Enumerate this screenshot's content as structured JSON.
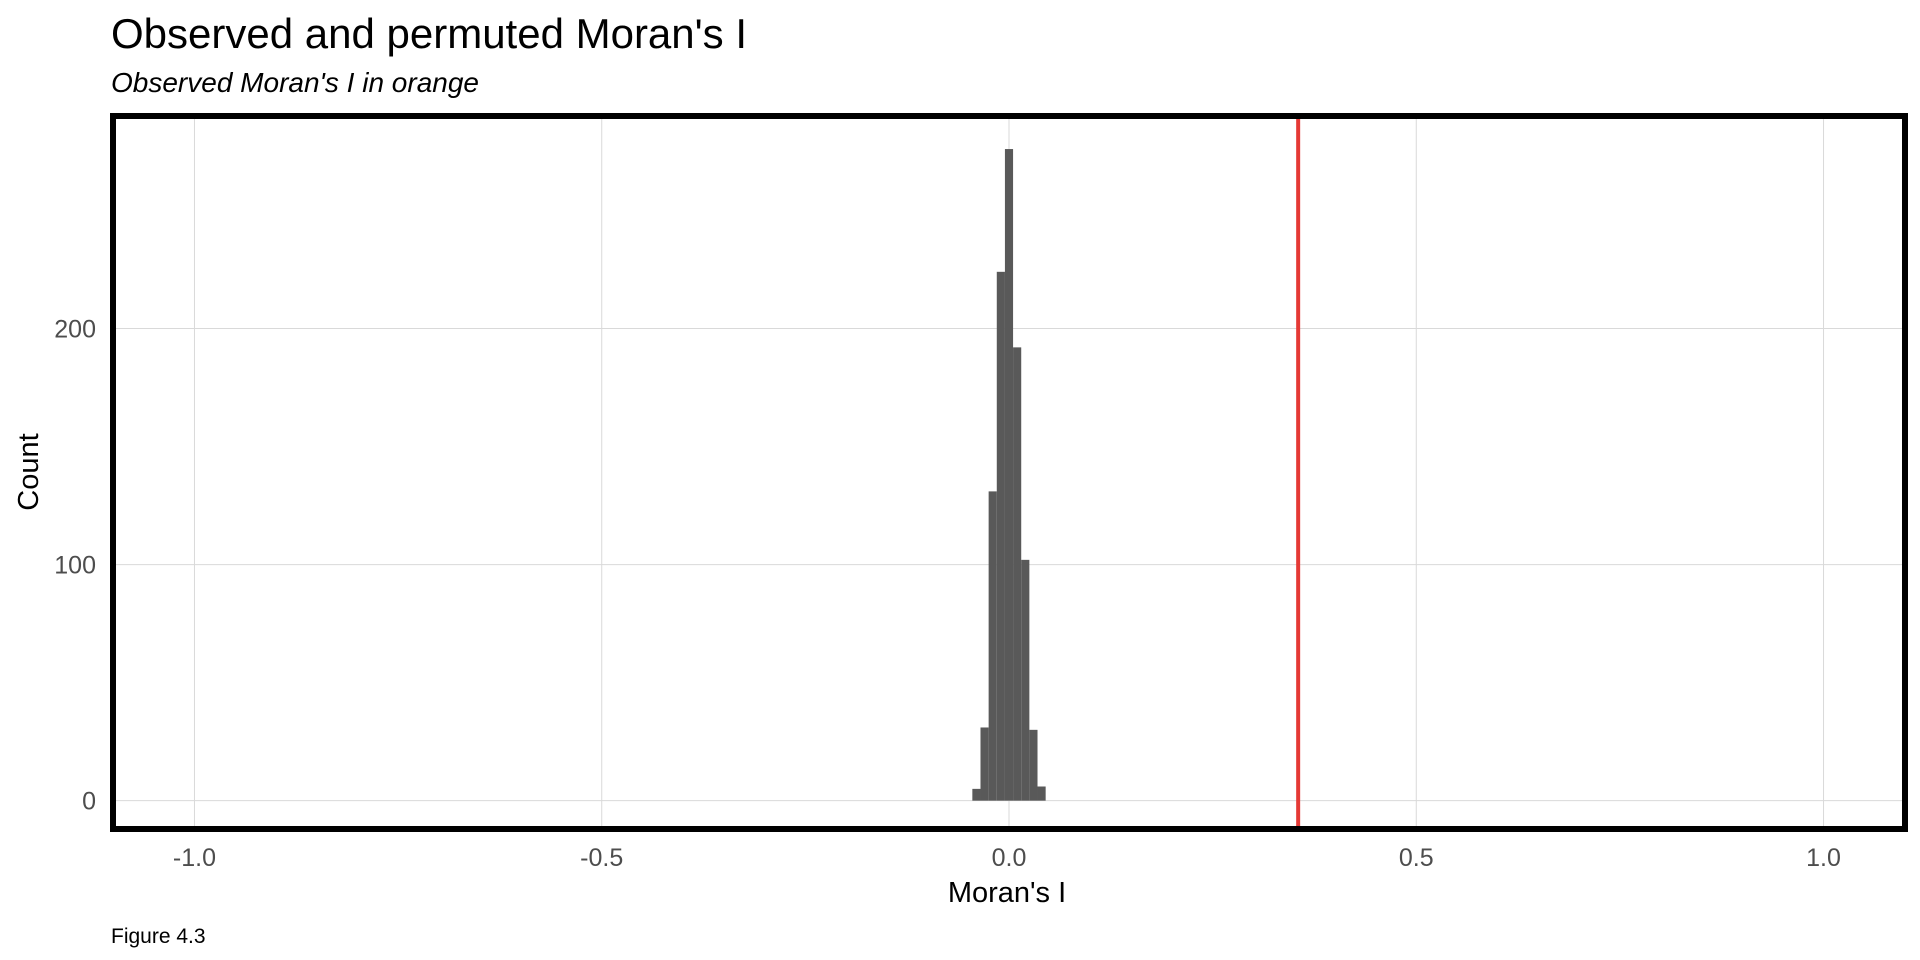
{
  "chart_data": {
    "type": "bar",
    "title": "Observed and permuted Moran's I",
    "subtitle": "Observed Moran's I in orange",
    "caption": "Figure 4.3",
    "xlabel": "Moran's I",
    "ylabel": "Count",
    "xlim": [
      -1.1,
      1.1
    ],
    "ylim": [
      -12,
      290
    ],
    "xticks": [
      -1.0,
      -0.5,
      0.0,
      0.5,
      1.0
    ],
    "xtick_labels": [
      "-1.0",
      "-0.5",
      "0.0",
      "0.5",
      "1.0"
    ],
    "yticks": [
      0,
      100,
      200
    ],
    "ytick_labels": [
      "0",
      "100",
      "200"
    ],
    "grid": true,
    "bins": [
      {
        "x0": -0.045,
        "x1": -0.035,
        "count": 5
      },
      {
        "x0": -0.035,
        "x1": -0.025,
        "count": 31
      },
      {
        "x0": -0.025,
        "x1": -0.015,
        "count": 131
      },
      {
        "x0": -0.015,
        "x1": -0.005,
        "count": 224
      },
      {
        "x0": -0.005,
        "x1": 0.005,
        "count": 276
      },
      {
        "x0": 0.005,
        "x1": 0.015,
        "count": 192
      },
      {
        "x0": 0.015,
        "x1": 0.025,
        "count": 102
      },
      {
        "x0": 0.025,
        "x1": 0.035,
        "count": 30
      },
      {
        "x0": 0.035,
        "x1": 0.045,
        "count": 6
      }
    ],
    "observed_value": 0.355,
    "colors": {
      "bars": "#595959",
      "observed_line": "#e53935",
      "grid": "#d9d9d9",
      "frame": "#000000",
      "tick_text": "#4d4d4d"
    }
  }
}
